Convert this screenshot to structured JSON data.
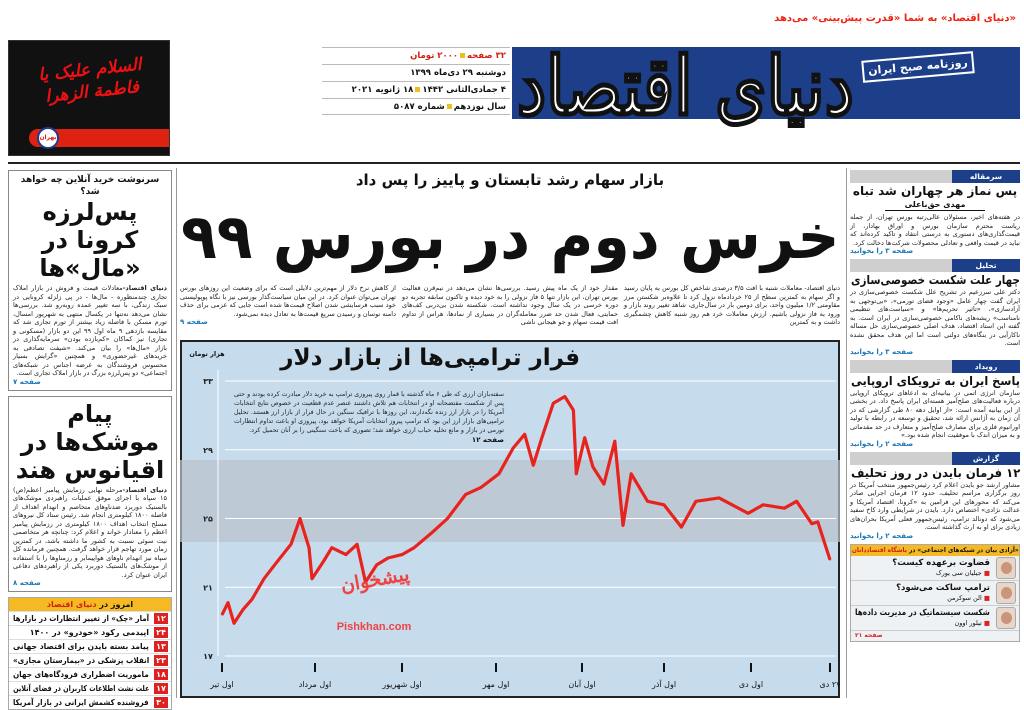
{
  "header": {
    "logo": "دنیای اقتصاد",
    "tagline": "«دنیای اقتصاد» به شما «قدرت پیش‌بینی» می‌دهد",
    "subtitle": "روزنامه صبح ایران",
    "info": {
      "pages": "۳۲ صفحه",
      "price": "۲۰۰۰ تومان",
      "date_jalali": "دوشنبه ۲۹ دی‌ماه ۱۳۹۹",
      "date_other": "۴ جمادی‌الثانی ۱۴۴۲",
      "date_gregorian": "۱۸ ژانویه ۲۰۲۱",
      "year": "سال نوزدهم",
      "issue": "شماره ۵۰۸۷"
    },
    "ad": {
      "calligraphy": "السلام علیک یا فاطمة الزهرا",
      "brand": "بهران"
    },
    "brand_color": "#1d3f8a",
    "accent_color": "#e21e26"
  },
  "left": {
    "story1": {
      "kicker": "سرنوشت خرید آنلاین چه خواهد شد؟",
      "headline": "پس‌لرزه کرونا در «مال»‌ها",
      "source": "دنیای اقتصاد-",
      "body": "معادلات قیمت و فروش در بازار املاک تجاری چندمنظوره - مال‌ها - در پی زلزله کرونایی در سبک زندگی، با سه تغییر عمده روبه‌رو شد. بررسی‌ها نشان می‌دهد نه‌تنها در یکسال منتهی به شهریور امسال، تورم مسکن با فاصله زیاد بیشتر از تورم تجاری شد که مقایسه بازدهی ۹ ماه اول ۹۹ این دو بازار (مسکونی و تجاری) نیز کماکان «کم‌بازده بودن» سرمایه‌گذاری در بازار «مال‌ها» را بیان می‌کند. «شیفت تصادفی به خریدهای غیرحضوری» و همچنین «گرایش بسیار محسوس فروشندگان به عرضه اجناس در شبکه‌های اجتماعی» دو پس‌لرزه بزرگ در بازار املاک تجاری است.",
      "page": "صفحه ۷"
    },
    "story2": {
      "headline": "پیام موشک‌ها در اقیانوس هند",
      "source": "دنیای اقتصاد-",
      "body": "مرحله نهایی رزمایش پیامبر اعظم(ص) ۱۵ سپاه با اجرای موفق عملیات راهبردی موشک‌های بالستیک دوربرد ضدناوهای متخاصم و انهدام اهداف از فاصله ۱۸۰۰ کیلومتری انجام شد. رئیس ستاد کل نیروهای مسلح انتخاب اهداف ۱۸۰۰ کیلومتری در رزمایش پیامبر اعظم را معنادار خواند و اعلام کرد: چنانچه هر متخاصمی نیت سوئی نسبت به کشور ما داشته باشد، در کمترین زمان مورد تهاجم قرار خواهد گرفت. همچنین فرمانده کل سپاه نیز انهدام ناوهای هواپیمابر و رزمناوها را با استفاده از موشک‌های بالستیک دوربرد یکی از راهبردهای دفاعی ایران عنوان کرد.",
      "page": "صفحه ۸"
    },
    "today": {
      "title_a": "امروز در",
      "title_b": "دنیای اقتصاد",
      "items": [
        {
          "page": "۱۲",
          "text": "آمار «چک» از تغییر انتظارات در بازارها"
        },
        {
          "page": "۲۴",
          "text": "اپیدمی رکود «خودرو» در ۱۴۰۰"
        },
        {
          "page": "۱۳",
          "text": "پیامد بسته بایدن برای اقتصاد جهانی"
        },
        {
          "page": "۲۳",
          "text": "انقلاب پزشکی در «بیمارستان مجازی»"
        },
        {
          "page": "۱۸",
          "text": "ماموریت اضطراری فرودگاه‌های جهان"
        },
        {
          "page": "۱۷",
          "text": "علت نشت اطلاعات کاربران در فضای آنلاین"
        },
        {
          "page": "۳۰",
          "text": "فروشنده کشمش ایرانی در بازار آمریکا"
        }
      ]
    }
  },
  "center": {
    "subhead": "بازار سهام رشد تابستان و پاییز را پس داد",
    "headline": "خرس دوم در بورس ۹۹",
    "columns": [
      "دنیای اقتصاد- معاملات شنبه با افت ۳/۵ درصدی شاخص کل بورس به پایان رسید و اگر سهام به کمترین سطح از ۲۵ خردادماه نزول کرد تا علاوه‌بر شکستن مرز مقاومتی ۱/۲ میلیون واحد، برای دومین بار در سال‌جاری، شاهد تغییر روند بازار و ورود به فاز نزولی باشیم. ارزش معاملات خرد هم روز شنبه کاهش چشمگیری داشت و به کمترین",
      "مقدار خود از یک ماه پیش رسید. بررسی‌ها نشان می‌دهد در نیم‌قرن فعالیت بورس تهران، این بازار تنها ۵ فاز نزولی را به خود دیده و تاکنون سابقه تجربه دو دوره خرسی در یک سال وجود نداشته است. شکسته شدن بی‌دربی کف‌های حمایتی، فعال شدن حد ضرر معامله‌گران در بسیاری از نمادها، هراس از تداوم افت قیمت سهام و جو هیجانی ناشی",
      "از کاهش نرخ دلار از مهم‌ترین دلایلی است که برای وضعیت این روزهای بورس تهران می‌توان عنوان کرد. در این میان سیاست‌گذار بورسی نیز با نگاه پوپولیستی خود سبب فرسایشی شدن اصلاح قیمت‌ها شده است جایی که عزمی برای حذف دامنه نوسان و رسیدن سریع قیمت‌ها به تعادل دیده نمی‌شود."
    ],
    "page": "صفحه ۹",
    "chart": {
      "title": "فرار ترامپی‌ها از بازار دلار",
      "text": "سفته‌بازان ارزی که طی ۶ ماه گذشته با قمار روی پیروزی ترامپ به خرید دلار مبادرت کرده بودند و حتی پس از شکست مفتضحانه او در انتخابات هم تلاش داشتند عنصر عدم قطعیت در خصوص نتایج انتخابات آمریکا را در بازار ارز زنده نگه‌دارند، این روزها با ترافیک سنگین در حال فرار از بازار ارز هستند. تحلیل ترامپی‌های بازار ارز این بود که ترامپ پیروز انتخابات آمریکا خواهد بود، پیروزی او باعث تداوم انتظارات تورمی در بازار و مانع تخلیه حباب ارزی خواهد شد؛ تصوری که باخت سنگینی را بر آنان تحمیل کرد.",
      "page": "صفحه ۱۲",
      "watermark_fa": "پیشخوان",
      "watermark_en": "Pishkhan.com"
    }
  },
  "chart_data": {
    "type": "line",
    "title": "فرار ترامپی‌ها از بازار دلار",
    "ylabel": "هزار تومان",
    "ylim": [
      17,
      33
    ],
    "yticks": [
      17,
      21,
      25,
      29,
      33
    ],
    "ytick_labels": [
      "۱۷",
      "۲۱",
      "۲۵",
      "۲۹",
      "۳۳"
    ],
    "xticks": [
      "1399/04/01",
      "1399/05/01",
      "1399/06/01",
      "1399/07/01",
      "1399/08/01",
      "1399/09/01",
      "1399/10/01",
      "1399/10/27"
    ],
    "xtick_labels": [
      "اول تیر",
      "اول مرداد",
      "اول شهریور",
      "اول مهر",
      "اول آبان",
      "اول آذر",
      "اول دی",
      "۲۷ دی"
    ],
    "grid": "horizontal",
    "line_color": "#e8231d",
    "x": [
      "1399/04/01",
      "1399/04/03",
      "1399/04/05",
      "1399/04/08",
      "1399/04/11",
      "1399/04/15",
      "1399/04/19",
      "1399/04/24",
      "1399/04/27",
      "1399/04/30",
      "1399/04/31",
      "1399/05/04",
      "1399/05/07",
      "1399/05/12",
      "1399/05/16",
      "1399/05/19",
      "1399/05/23",
      "1399/05/27",
      "1399/06/01",
      "1399/06/05",
      "1399/06/11",
      "1399/06/16",
      "1399/06/22",
      "1399/06/27",
      "1399/07/02",
      "1399/07/07",
      "1399/07/11",
      "1399/07/14",
      "1399/07/17",
      "1399/07/21",
      "1399/07/25",
      "1399/07/28",
      "1399/07/29",
      "1399/08/02",
      "1399/08/05",
      "1399/08/09",
      "1399/08/13",
      "1399/08/16",
      "1399/08/19",
      "1399/08/25",
      "1399/09/01",
      "1399/09/07",
      "1399/09/12",
      "1399/09/20",
      "1399/09/30",
      "1399/10/05",
      "1399/10/12",
      "1399/10/16",
      "1399/10/21",
      "1399/10/23",
      "1399/10/27"
    ],
    "values": [
      19.4,
      20.1,
      18.9,
      19.7,
      20.3,
      21.5,
      22.4,
      23.5,
      25.0,
      23.3,
      21.5,
      22.5,
      23.3,
      22.9,
      23.5,
      21.3,
      22.3,
      22.7,
      22.9,
      23.3,
      24.2,
      25.0,
      26.4,
      26.8,
      27.6,
      29.1,
      29.9,
      28.1,
      29.7,
      31.7,
      32.1,
      31.3,
      27.6,
      29.7,
      28.0,
      27.0,
      29.5,
      24.6,
      27.6,
      26.0,
      25.8,
      24.5,
      26.0,
      26.2,
      25.3,
      25.8,
      25.6,
      26.0,
      24.7,
      24.8,
      22.6
    ]
  },
  "right": {
    "sections": [
      {
        "label": "سرمقاله",
        "headline": "پس نماز هر چهاران شد تباه",
        "author": "مهدی حق‌باعلی",
        "body": "در هفته‌های اخیر، مسئولان عالی‌رتبه بورس تهران، از جمله ریاست محترم سازمان بورس و اوراق بهادار، از قیمت‌گذاری‌های دستوری به درستی انتقاد و تاکید کرده‌اند که نباید در قیمت واقعی و تعادلی محصولات شرکت‌ها دخالت کرد.",
        "page": "صفحه ۳ را بخوانید"
      },
      {
        "label": "تحلیل",
        "headline": "چهار علت شکست خصوصی‌سازی",
        "body": "دکتر علی سرزعیم در تشریح علل شکست خصوصی‌سازی در ایران گفت چهار عامل «وجود فضای تورمی»، «بی‌توجهی به آزادسازی»، «تاثیر تحریم‌ها» و «سیاست‌های تنظیمی نامناسب» ریشه‌های ناکامی خصوصی‌سازی در ایران است. به گفته این استاد اقتصاد، هدف اصلی خصوصی‌سازی حل مساله ناکارآیی در بنگاه‌های دولتی است اما این هدف محقق نشده است.",
        "page": "صفحه ۳ را بخوانید"
      },
      {
        "label": "رویداد",
        "headline": "پاسخ ایران به ترویکای اروپایی",
        "body": "سازمان انرژی اتمی در بیانیه‌ای به ادعاهای ترویکای اروپایی درباره فعالیت‌های صلح‌آمیز هسته‌ای ایران پاسخ داد. در بخشی از این بیانیه آمده است: «از اوایل دهه ۸۰ طی گزارشی که در آن زمان به آژانس ارائه شد، تحقیق و توسعه در رابطه با تولید اورانیوم فلزی برای مصارف صلح‌آمیز و متعارف در حد مقدماتی و به میزان اندک با موفقیت انجام شده بود.»",
        "page": "صفحه ۲ را بخوانید"
      },
      {
        "label": "گزارش",
        "headline": "۱۲ فرمان بایدن در روز تحلیف",
        "body": "مشاور ارشد جو بایدن اعلام کرد رئیس‌جمهور منتخب آمریکا در روز برگزاری مراسم تحلیف، حدود ۱۲ فرمان اجرایی صادر می‌کند که محورهای این فرامین به «کرونا، اقتصاد آمریکا و عدالت نژادی» اختصاص دارد. بایدن در شرایطی وارد کاخ سفید می‌شود که دونالد ترامپ، رئیس‌جمهور فعلی آمریکا بحران‌های زیادی برای او به ارث گذاشته است.",
        "page": "صفحه ۲ را بخوانید"
      }
    ],
    "club": {
      "title_a": "«آزادی بیان در شبکه‌های اجتماعی» در",
      "title_b": "باشگاه اقتصاددانان",
      "items": [
        {
          "title": "قضاوت برعهده کیست؟",
          "author": "جیلیان سی یورک"
        },
        {
          "title": "ترامپ ساکت می‌شود؟",
          "author": "الن سوکرمن"
        },
        {
          "title": "شکست سیستماتیک در مدیریت داده‌ها",
          "author": "تیلور اوون"
        }
      ],
      "page": "صفحه ۲۱"
    }
  }
}
